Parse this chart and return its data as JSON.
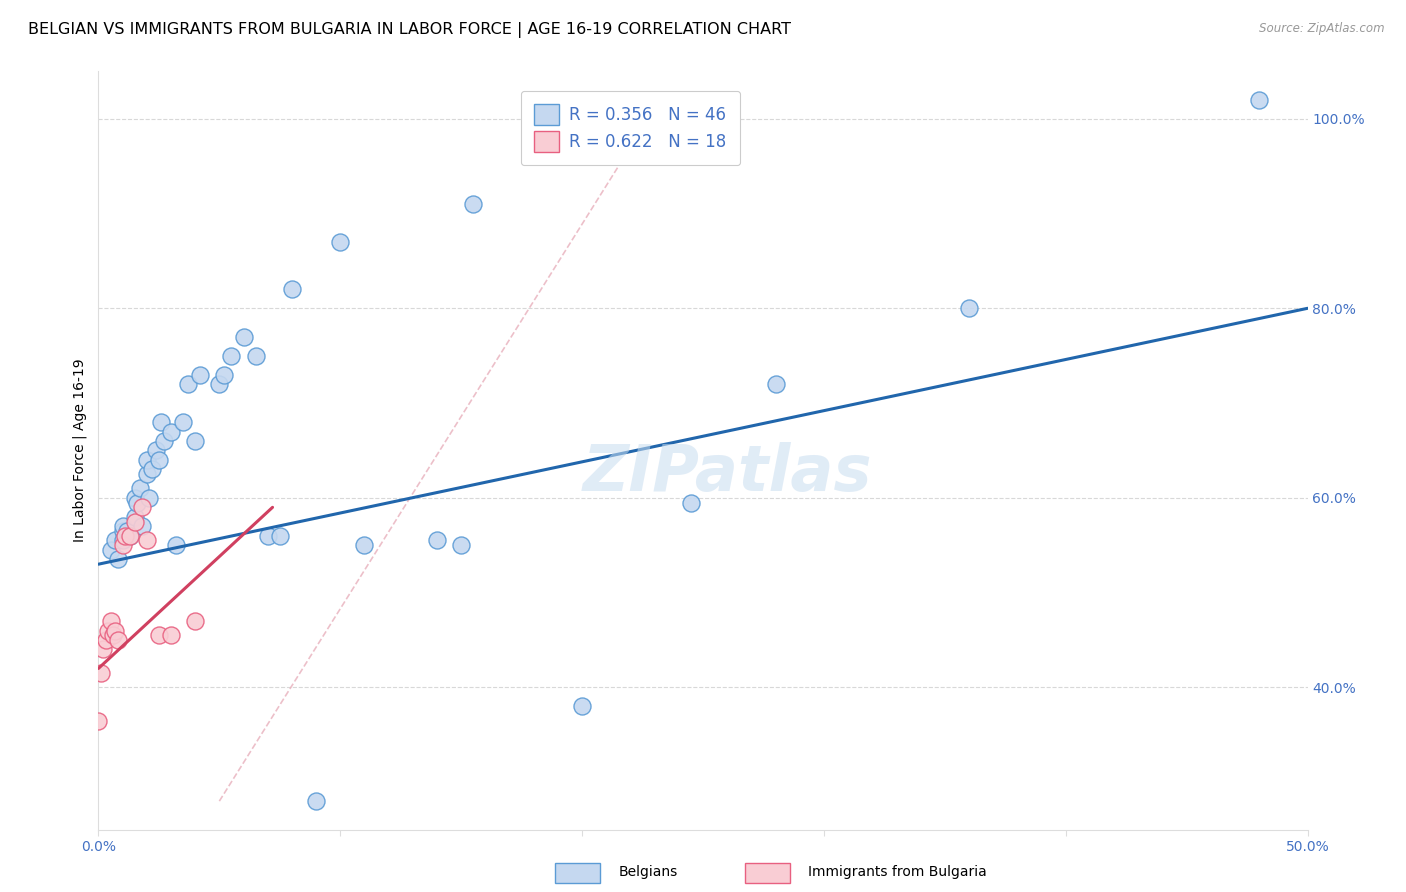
{
  "title": "BELGIAN VS IMMIGRANTS FROM BULGARIA IN LABOR FORCE | AGE 16-19 CORRELATION CHART",
  "source": "Source: ZipAtlas.com",
  "ylabel": "In Labor Force | Age 16-19",
  "watermark": "ZIPatlas",
  "xlim": [
    0.0,
    0.5
  ],
  "ylim": [
    0.25,
    1.05
  ],
  "x_ticks": [
    0.0,
    0.1,
    0.2,
    0.3,
    0.4,
    0.5
  ],
  "x_tick_labels": [
    "0.0%",
    "",
    "",
    "",
    "",
    "50.0%"
  ],
  "y_ticks": [
    0.4,
    0.6,
    0.8,
    1.0
  ],
  "y_tick_labels": [
    "40.0%",
    "60.0%",
    "80.0%",
    "100.0%"
  ],
  "belgians_x": [
    0.005,
    0.007,
    0.008,
    0.01,
    0.01,
    0.01,
    0.012,
    0.013,
    0.015,
    0.015,
    0.016,
    0.017,
    0.018,
    0.02,
    0.02,
    0.021,
    0.022,
    0.024,
    0.025,
    0.026,
    0.027,
    0.03,
    0.032,
    0.035,
    0.037,
    0.04,
    0.042,
    0.05,
    0.052,
    0.055,
    0.06,
    0.065,
    0.07,
    0.075,
    0.08,
    0.09,
    0.1,
    0.11,
    0.14,
    0.15,
    0.155,
    0.2,
    0.245,
    0.28,
    0.36,
    0.48
  ],
  "belgians_y": [
    0.545,
    0.555,
    0.535,
    0.565,
    0.57,
    0.555,
    0.565,
    0.56,
    0.6,
    0.58,
    0.595,
    0.61,
    0.57,
    0.625,
    0.64,
    0.6,
    0.63,
    0.65,
    0.64,
    0.68,
    0.66,
    0.67,
    0.55,
    0.68,
    0.72,
    0.66,
    0.73,
    0.72,
    0.73,
    0.75,
    0.77,
    0.75,
    0.56,
    0.56,
    0.82,
    0.28,
    0.87,
    0.55,
    0.555,
    0.55,
    0.91,
    0.38,
    0.595,
    0.72,
    0.8,
    1.02
  ],
  "bulgaria_x": [
    0.0,
    0.001,
    0.002,
    0.003,
    0.004,
    0.005,
    0.006,
    0.007,
    0.008,
    0.01,
    0.011,
    0.013,
    0.015,
    0.018,
    0.02,
    0.025,
    0.03,
    0.04
  ],
  "bulgaria_y": [
    0.365,
    0.415,
    0.44,
    0.45,
    0.46,
    0.47,
    0.455,
    0.46,
    0.45,
    0.55,
    0.56,
    0.56,
    0.575,
    0.59,
    0.555,
    0.455,
    0.455,
    0.47
  ],
  "R_belgian": 0.356,
  "N_belgian": 46,
  "R_bulgaria": 0.622,
  "N_bulgaria": 18,
  "belgian_color": "#c5d8f0",
  "bulgaria_color": "#f9cdd4",
  "belgian_edge_color": "#5b9bd5",
  "bulgaria_edge_color": "#e86080",
  "belgian_line_color": "#2166ac",
  "bulgaria_line_color": "#d04060",
  "diag_line_color": "#e8b0bc",
  "title_fontsize": 11.5,
  "axis_label_fontsize": 10,
  "tick_fontsize": 10,
  "legend_fontsize": 12
}
